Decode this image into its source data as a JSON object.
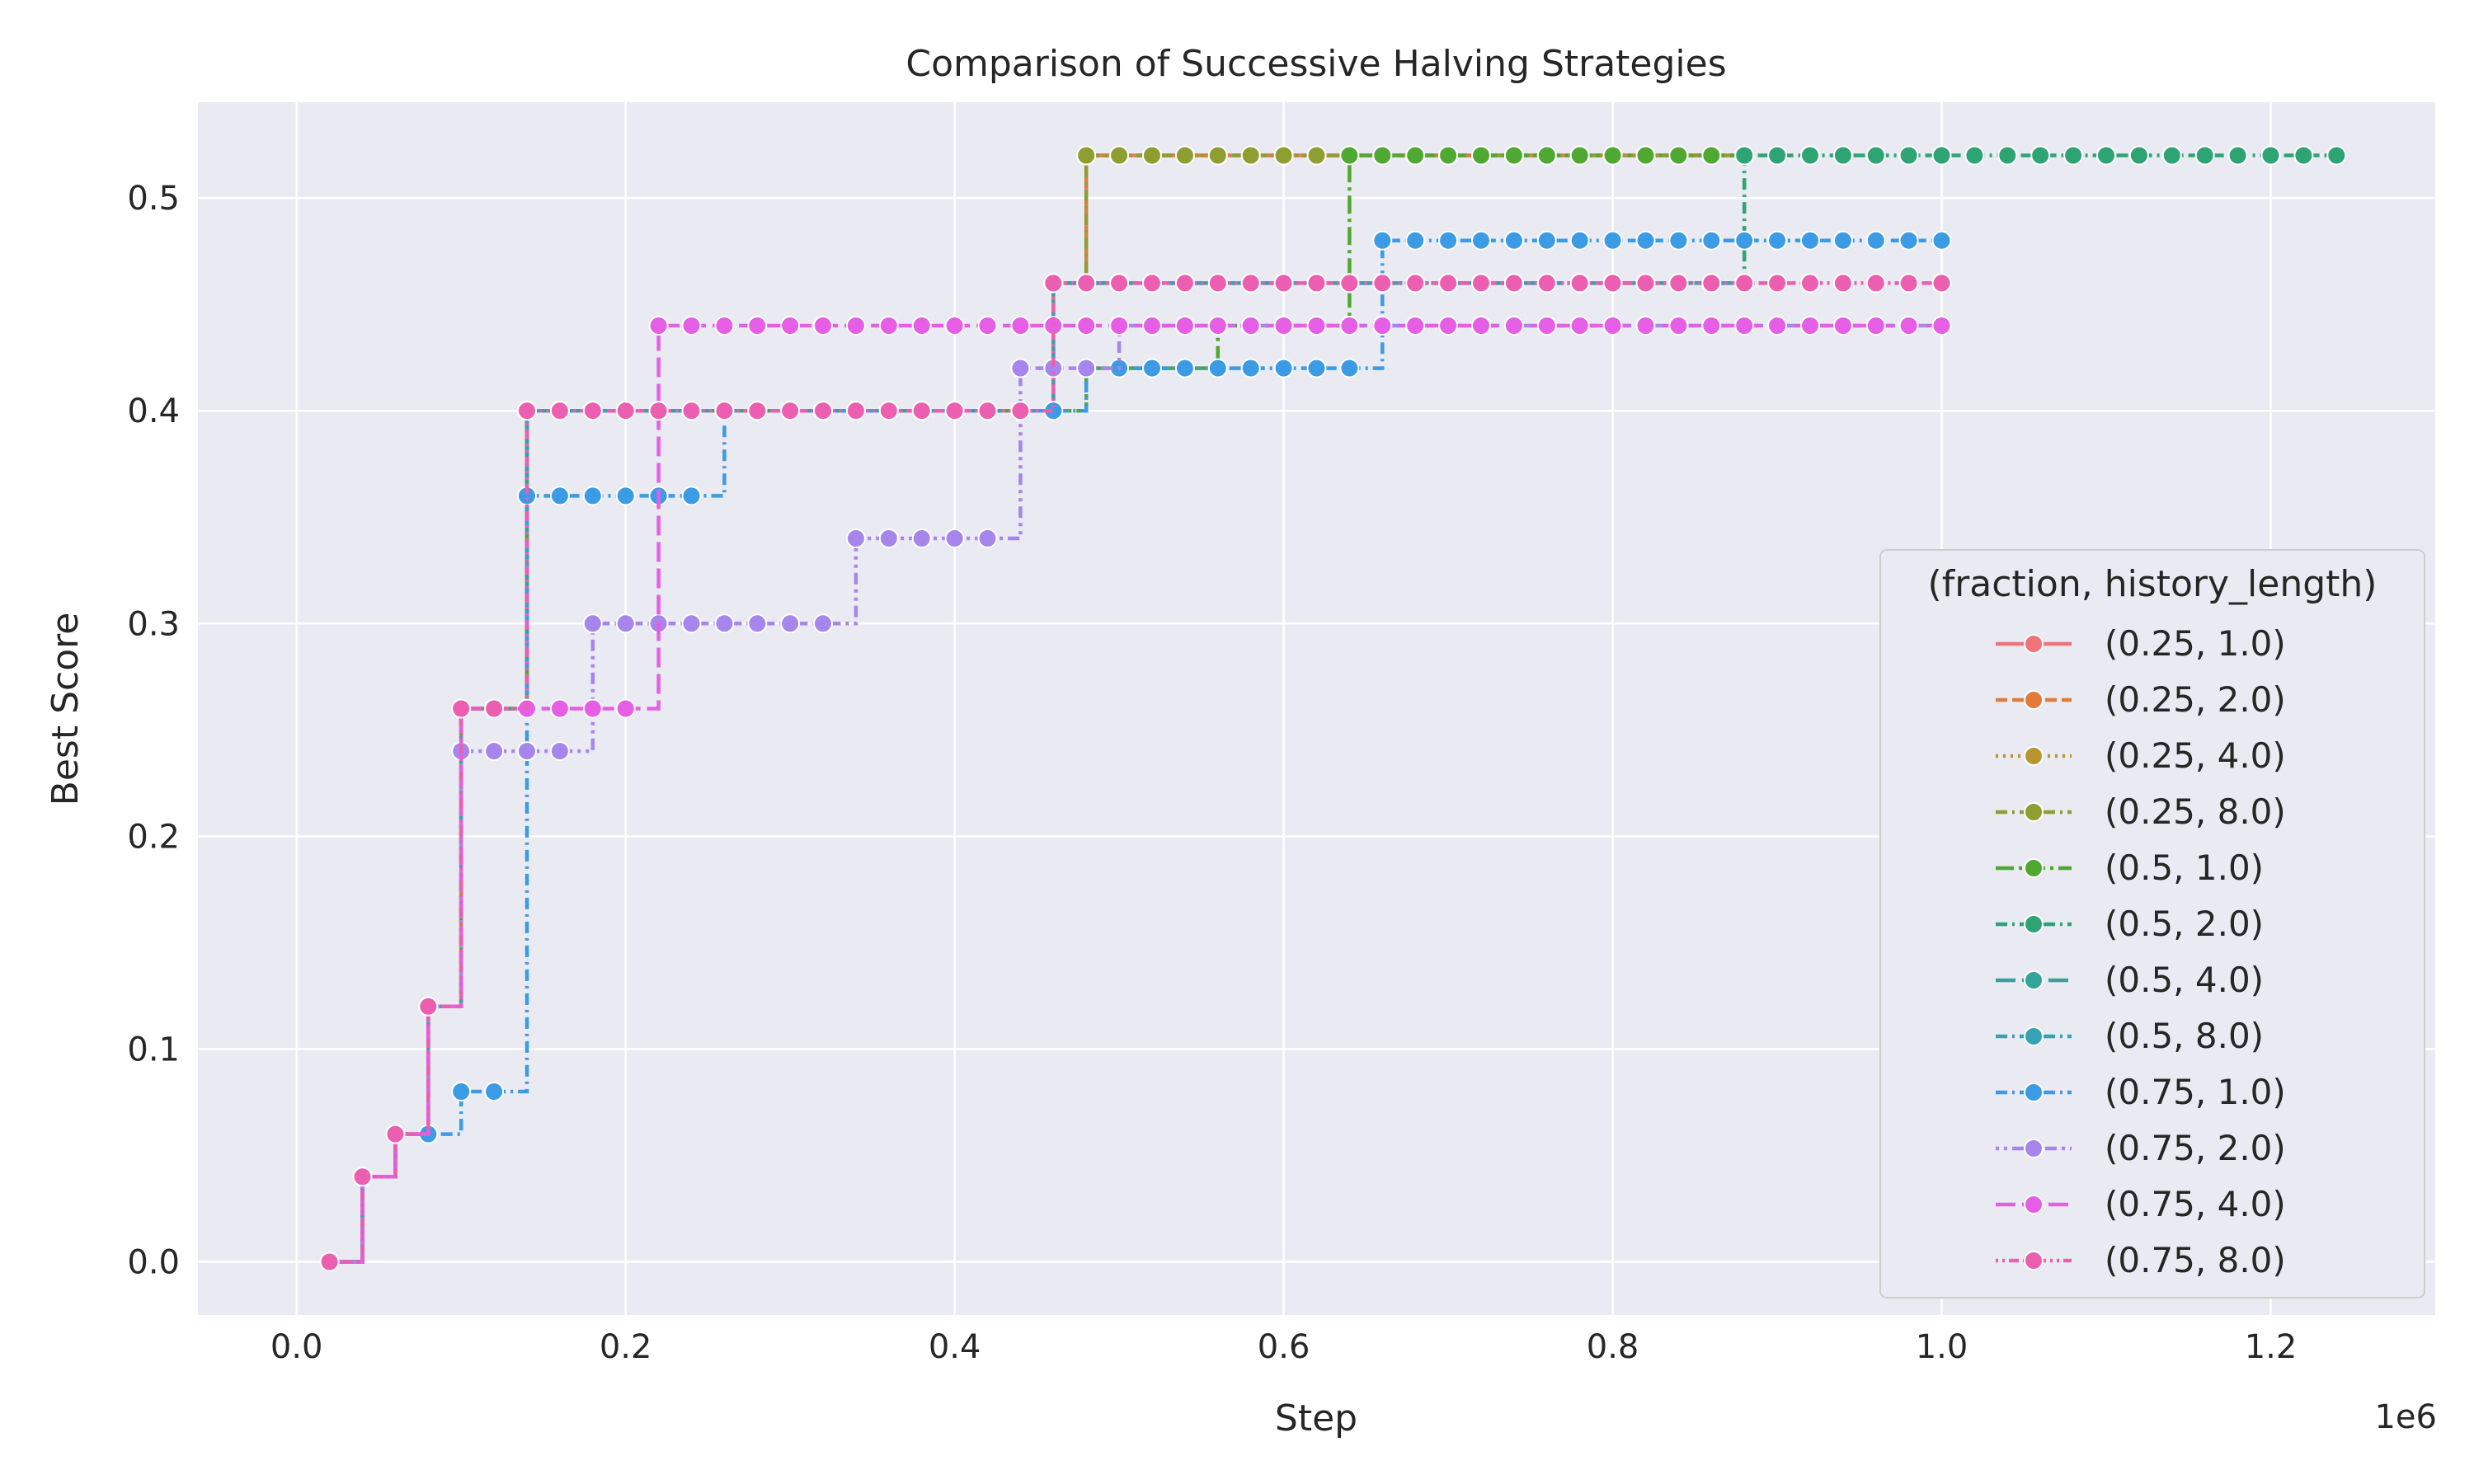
{
  "chart_data": {
    "type": "line",
    "title": "Comparison of Successive Halving Strategies",
    "xlabel": "Step",
    "ylabel": "Best Score",
    "x_exponent_label": "1e6",
    "xlim": [
      -60000,
      1300000
    ],
    "ylim": [
      -0.025,
      0.545
    ],
    "x_ticks": [
      0,
      200000,
      400000,
      600000,
      800000,
      1000000,
      1200000
    ],
    "x_tick_labels": [
      "0.0",
      "0.2",
      "0.4",
      "0.6",
      "0.8",
      "1.0",
      "1.2"
    ],
    "y_ticks": [
      0.0,
      0.1,
      0.2,
      0.3,
      0.4,
      0.5
    ],
    "y_tick_labels": [
      "0.0",
      "0.1",
      "0.2",
      "0.3",
      "0.4",
      "0.5"
    ],
    "grid": true,
    "background": "#eaeaf2",
    "legend": {
      "title": "(fraction, history_length)",
      "placement": "lower-right"
    },
    "series": [
      {
        "name": "(0.25, 1.0)",
        "color": "#f0727a",
        "dash": "solid",
        "step_points": [
          [
            20000,
            0.0
          ],
          [
            40000,
            0.04
          ],
          [
            60000,
            0.06
          ],
          [
            80000,
            0.12
          ],
          [
            100000,
            0.26
          ],
          [
            140000,
            0.4
          ],
          [
            460000,
            0.46
          ],
          [
            480000,
            0.52
          ]
        ],
        "x_end": 880000
      },
      {
        "name": "(0.25, 2.0)",
        "color": "#e07b39",
        "dash": "dashed",
        "step_points": [
          [
            20000,
            0.0
          ],
          [
            40000,
            0.04
          ],
          [
            60000,
            0.06
          ],
          [
            80000,
            0.12
          ],
          [
            100000,
            0.26
          ],
          [
            140000,
            0.4
          ],
          [
            460000,
            0.46
          ],
          [
            480000,
            0.52
          ]
        ],
        "x_end": 880000
      },
      {
        "name": "(0.25, 4.0)",
        "color": "#b8952e",
        "dash": "dotted",
        "step_points": [
          [
            20000,
            0.0
          ],
          [
            40000,
            0.04
          ],
          [
            60000,
            0.06
          ],
          [
            80000,
            0.12
          ],
          [
            100000,
            0.26
          ],
          [
            140000,
            0.4
          ],
          [
            460000,
            0.46
          ],
          [
            480000,
            0.52
          ]
        ],
        "x_end": 880000
      },
      {
        "name": "(0.25, 8.0)",
        "color": "#8f9e30",
        "dash": "dashdot",
        "step_points": [
          [
            20000,
            0.0
          ],
          [
            40000,
            0.04
          ],
          [
            60000,
            0.06
          ],
          [
            80000,
            0.12
          ],
          [
            100000,
            0.26
          ],
          [
            140000,
            0.4
          ],
          [
            460000,
            0.46
          ],
          [
            480000,
            0.52
          ]
        ],
        "x_end": 880000
      },
      {
        "name": "(0.5, 1.0)",
        "color": "#4fa832",
        "dash": "longdashdot",
        "step_points": [
          [
            20000,
            0.0
          ],
          [
            40000,
            0.04
          ],
          [
            60000,
            0.06
          ],
          [
            80000,
            0.12
          ],
          [
            100000,
            0.26
          ],
          [
            140000,
            0.4
          ],
          [
            460000,
            0.4
          ],
          [
            480000,
            0.42
          ],
          [
            560000,
            0.44
          ],
          [
            640000,
            0.52
          ]
        ],
        "x_end": 880000
      },
      {
        "name": "(0.5, 2.0)",
        "color": "#2ea474",
        "dash": "dashdot",
        "step_points": [
          [
            20000,
            0.0
          ],
          [
            40000,
            0.04
          ],
          [
            60000,
            0.06
          ],
          [
            80000,
            0.12
          ],
          [
            100000,
            0.26
          ],
          [
            140000,
            0.4
          ],
          [
            460000,
            0.46
          ],
          [
            880000,
            0.52
          ]
        ],
        "x_end": 1240000
      },
      {
        "name": "(0.5, 4.0)",
        "color": "#33a499",
        "dash": "longdash",
        "step_points": [
          [
            20000,
            0.0
          ],
          [
            40000,
            0.04
          ],
          [
            60000,
            0.06
          ],
          [
            80000,
            0.12
          ],
          [
            100000,
            0.26
          ],
          [
            140000,
            0.4
          ],
          [
            460000,
            0.46
          ]
        ],
        "x_end": 880000
      },
      {
        "name": "(0.5, 8.0)",
        "color": "#36a2b5",
        "dash": "dashdot",
        "step_points": [
          [
            20000,
            0.0
          ],
          [
            40000,
            0.04
          ],
          [
            60000,
            0.06
          ],
          [
            80000,
            0.12
          ],
          [
            100000,
            0.26
          ],
          [
            140000,
            0.4
          ],
          [
            460000,
            0.46
          ]
        ],
        "x_end": 880000
      },
      {
        "name": "(0.75, 1.0)",
        "color": "#3b9be5",
        "dash": "dashdot",
        "step_points": [
          [
            20000,
            0.0
          ],
          [
            40000,
            0.04
          ],
          [
            60000,
            0.06
          ],
          [
            80000,
            0.06
          ],
          [
            100000,
            0.08
          ],
          [
            140000,
            0.36
          ],
          [
            260000,
            0.4
          ],
          [
            480000,
            0.42
          ],
          [
            660000,
            0.48
          ]
        ],
        "x_end": 1000000
      },
      {
        "name": "(0.75, 2.0)",
        "color": "#a686ec",
        "dash": "dotdash",
        "step_points": [
          [
            20000,
            0.0
          ],
          [
            40000,
            0.04
          ],
          [
            60000,
            0.06
          ],
          [
            80000,
            0.12
          ],
          [
            100000,
            0.24
          ],
          [
            180000,
            0.3
          ],
          [
            340000,
            0.34
          ],
          [
            440000,
            0.42
          ],
          [
            500000,
            0.44
          ]
        ],
        "x_end": 1000000
      },
      {
        "name": "(0.75, 4.0)",
        "color": "#e55ee5",
        "dash": "longdash",
        "step_points": [
          [
            20000,
            0.0
          ],
          [
            40000,
            0.04
          ],
          [
            60000,
            0.06
          ],
          [
            80000,
            0.12
          ],
          [
            100000,
            0.26
          ],
          [
            220000,
            0.44
          ]
        ],
        "x_end": 1000000
      },
      {
        "name": "(0.75, 8.0)",
        "color": "#ec5fb0",
        "dash": "dotdotdash",
        "step_points": [
          [
            20000,
            0.0
          ],
          [
            40000,
            0.04
          ],
          [
            60000,
            0.06
          ],
          [
            80000,
            0.12
          ],
          [
            100000,
            0.26
          ],
          [
            140000,
            0.4
          ],
          [
            460000,
            0.46
          ]
        ],
        "x_end": 1000000
      }
    ]
  }
}
